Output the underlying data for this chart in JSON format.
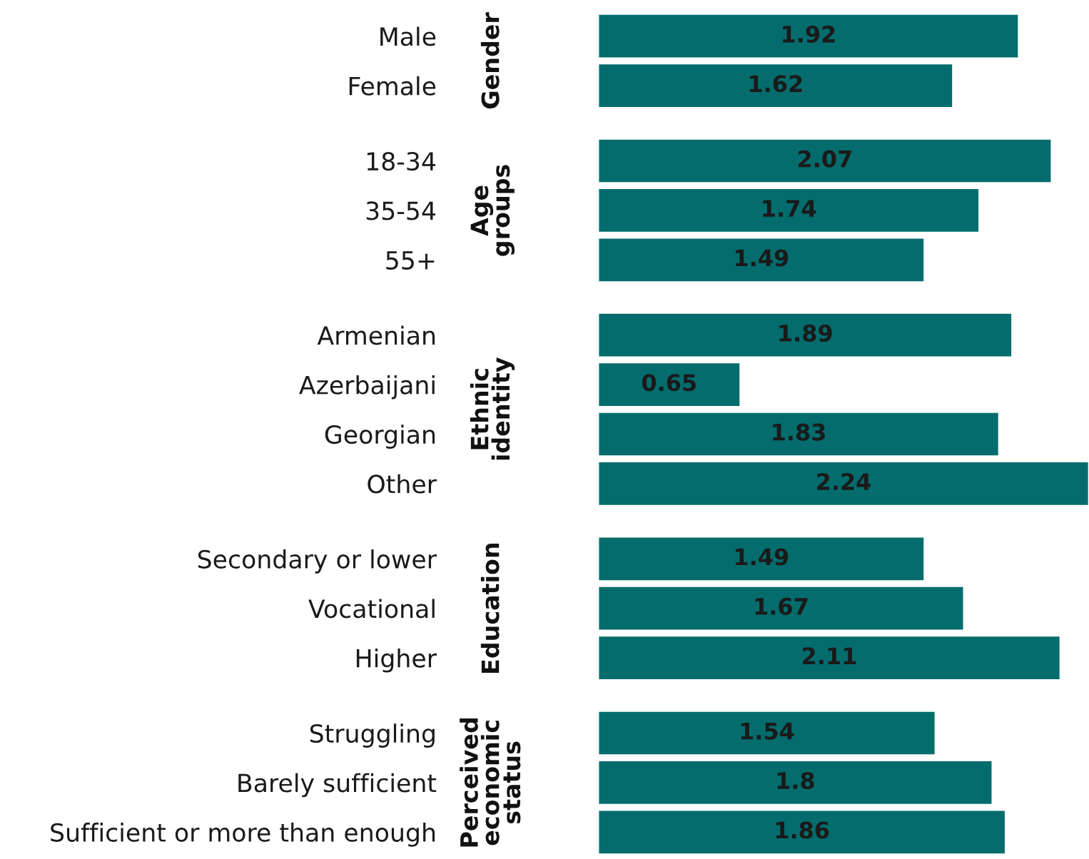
{
  "chart_data": [
    {
      "type": "bar",
      "orientation": "horizontal",
      "title": "Gender",
      "categories": [
        "Male",
        "Female"
      ],
      "values": [
        1.92,
        1.62
      ],
      "color": "#046c6d",
      "data_labels": true
    },
    {
      "type": "bar",
      "orientation": "horizontal",
      "title": "Age groups",
      "categories": [
        "18-34",
        "35-54",
        "55+"
      ],
      "values": [
        2.07,
        1.74,
        1.49
      ],
      "color": "#046c6d",
      "data_labels": true
    },
    {
      "type": "bar",
      "orientation": "horizontal",
      "title": "Ethnic identity",
      "categories": [
        "Armenian",
        "Azerbaijani",
        "Georgian",
        "Other"
      ],
      "values": [
        1.89,
        0.65,
        1.83,
        2.24
      ],
      "color": "#046c6d",
      "data_labels": true
    },
    {
      "type": "bar",
      "orientation": "horizontal",
      "title": "Education",
      "categories": [
        "Secondary or lower",
        "Vocational",
        "Higher"
      ],
      "values": [
        1.49,
        1.67,
        2.11
      ],
      "color": "#046c6d",
      "data_labels": true
    },
    {
      "type": "bar",
      "orientation": "horizontal",
      "title": "Perceived economic status",
      "categories": [
        "Struggling",
        "Barely sufficient",
        "Sufficient or more than enough"
      ],
      "values": [
        1.54,
        1.8,
        1.86
      ],
      "color": "#046c6d",
      "data_labels": true
    }
  ]
}
